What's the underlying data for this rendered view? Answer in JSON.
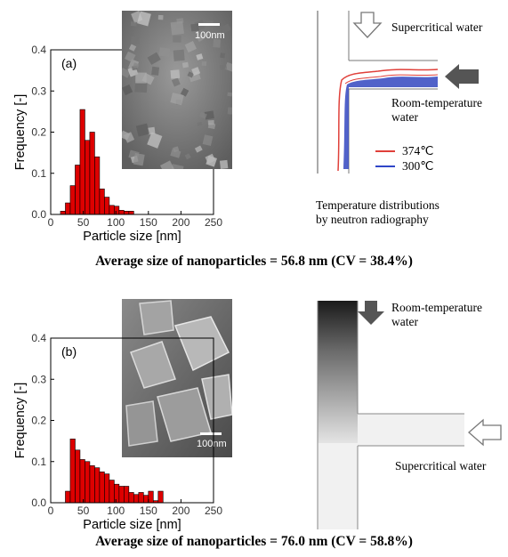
{
  "chart_data": [
    {
      "type": "bar",
      "panel_label": "(a)",
      "xlabel": "Particle size [nm]",
      "ylabel": "Frequency [-]",
      "xlim": [
        0,
        250
      ],
      "ylim": [
        0,
        0.4
      ],
      "xticks": [
        "0",
        "50",
        "100",
        "150",
        "200",
        "250"
      ],
      "yticks": [
        "0.0",
        "0.1",
        "0.2",
        "0.3",
        "0.4"
      ],
      "bin_width": 7.5,
      "bin_starts": [
        15,
        22.5,
        30,
        37.5,
        45,
        52.5,
        60,
        67.5,
        75,
        82.5,
        90,
        97.5,
        105,
        112.5,
        120
      ],
      "values": [
        0.008,
        0.028,
        0.07,
        0.12,
        0.255,
        0.18,
        0.2,
        0.14,
        0.062,
        0.042,
        0.022,
        0.02,
        0.01,
        0.008,
        0.008
      ],
      "bar_color": "#dd0000",
      "inset": {
        "scale_bar": "100nm"
      }
    },
    {
      "type": "bar",
      "panel_label": "(b)",
      "xlabel": "Particle size [nm]",
      "ylabel": "Frequency [-]",
      "xlim": [
        0,
        250
      ],
      "ylim": [
        0,
        0.4
      ],
      "xticks": [
        "0",
        "50",
        "100",
        "150",
        "200",
        "250"
      ],
      "yticks": [
        "0.0",
        "0.1",
        "0.2",
        "0.3",
        "0.4"
      ],
      "bin_width": 7.5,
      "bin_starts": [
        22.5,
        30,
        37.5,
        45,
        52.5,
        60,
        67.5,
        75,
        82.5,
        90,
        97.5,
        105,
        112.5,
        120,
        127.5,
        135,
        142.5,
        150,
        157.5,
        165
      ],
      "values": [
        0.028,
        0.155,
        0.128,
        0.105,
        0.1,
        0.09,
        0.085,
        0.075,
        0.07,
        0.055,
        0.045,
        0.04,
        0.04,
        0.025,
        0.02,
        0.025,
        0.018,
        0.028,
        0.005,
        0.028
      ],
      "bar_color": "#dd0000",
      "inset": {
        "scale_bar": "100nm"
      }
    }
  ],
  "top_diagram": {
    "supercritical_label": "Supercritical water",
    "room_temp_label": "Room-temperature water",
    "legend": [
      {
        "label": "374℃",
        "color": "#e0403a"
      },
      {
        "label": "300℃",
        "color": "#2f45c8"
      }
    ],
    "caption_line1": "Temperature distributions",
    "caption_line2": "by neutron radiography"
  },
  "bottom_diagram": {
    "room_temp_label": "Room-temperature water",
    "supercritical_label": "Supercritical water"
  },
  "captions": {
    "top": "Average size of nanoparticles = 56.8 nm (CV = 38.4%)",
    "bottom": "Average size of nanoparticles = 76.0 nm (CV = 58.8%)"
  }
}
